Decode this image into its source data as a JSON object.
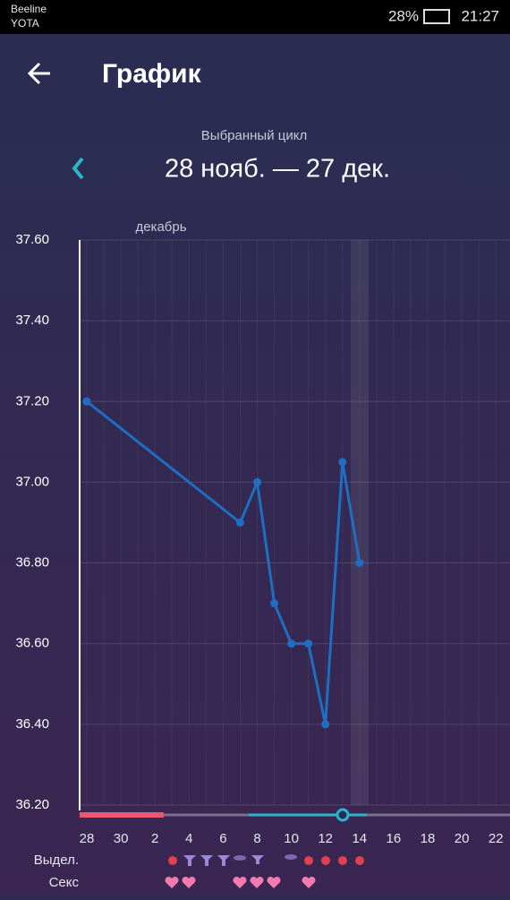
{
  "status_bar": {
    "carrier1": "Beeline",
    "carrier2": "YOTA",
    "battery": "28%",
    "time": "21:27"
  },
  "header": {
    "title": "График"
  },
  "cycle": {
    "caption": "Выбранный цикл",
    "range": "28 нояб. — 27 дек."
  },
  "chart_data": {
    "type": "line",
    "month_label": "декабрь",
    "categories": [
      "28",
      null,
      "30",
      null,
      "2",
      null,
      "4",
      null,
      "6",
      null,
      "8",
      null,
      "10",
      null,
      "12",
      null,
      "14",
      null,
      "16",
      null,
      "18",
      null,
      "20",
      null,
      "22"
    ],
    "series": [
      {
        "name": null,
        "color": "#1e6fc2",
        "values": [
          37.2,
          null,
          null,
          null,
          null,
          null,
          null,
          null,
          null,
          36.9,
          37.0,
          36.7,
          36.6,
          36.6,
          36.4,
          37.05,
          36.8,
          null,
          null,
          null,
          null,
          null,
          null,
          null,
          null
        ]
      }
    ],
    "span_gaps": true,
    "ylim": [
      36.2,
      37.6
    ],
    "yticks": [
      {
        "value": 36.2,
        "label": "36.20"
      },
      {
        "value": 36.4,
        "label": "36.40"
      },
      {
        "value": 36.6,
        "label": "36.60"
      },
      {
        "value": 36.8,
        "label": "36.80"
      },
      {
        "value": 37.0,
        "label": "37.00"
      },
      {
        "value": 37.2,
        "label": "37.20"
      },
      {
        "value": 37.4,
        "label": "37.40"
      },
      {
        "value": 37.6,
        "label": "37.60"
      }
    ],
    "grid": true
  },
  "legend_rows": {
    "discharge": "Выдел.",
    "sex": "Секс"
  }
}
